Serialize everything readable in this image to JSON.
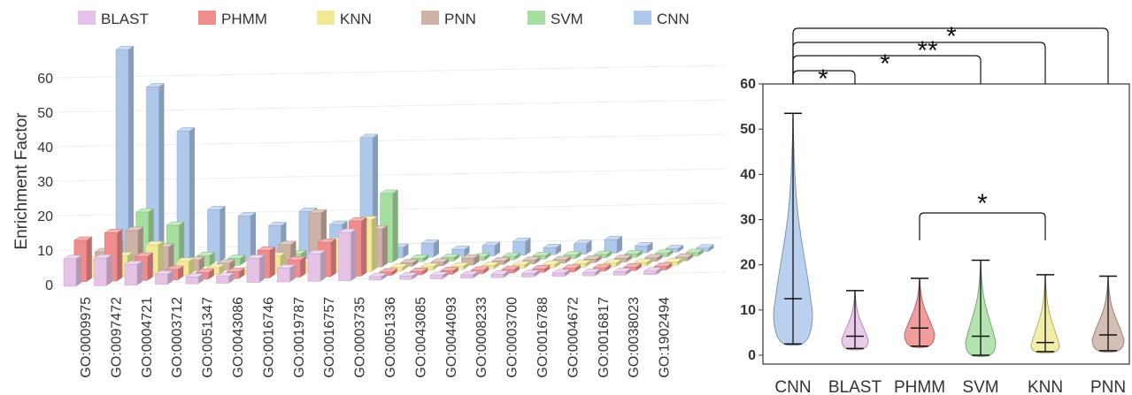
{
  "chart_data": [
    {
      "type": "bar",
      "ylabel": "Enrichment Factor",
      "ylim": [
        0,
        60
      ],
      "yticks": [
        "0",
        "10",
        "20",
        "30",
        "40",
        "50",
        "60"
      ],
      "categories": [
        "GO:0009975",
        "GO:0097472",
        "GO:0004721",
        "GO:0003712",
        "GO:0051347",
        "GO:0043086",
        "GO:0016746",
        "GO:0019787",
        "GO:0016757",
        "GO:0003735",
        "GO:0051336",
        "GO:0043085",
        "GO:0044093",
        "GO:0008233",
        "GO:0003700",
        "GO:0016788",
        "GO:0004672",
        "GO:0016817",
        "GO:0038023",
        "GO:1902494"
      ],
      "legend_position": "top",
      "series": [
        {
          "name": "BLAST",
          "color": "#e6c3e6",
          "values": [
            8,
            8,
            6,
            3,
            2,
            2,
            7,
            4,
            8,
            14,
            1,
            1,
            1,
            1,
            1,
            1,
            1,
            1,
            1,
            1
          ]
        },
        {
          "name": "PHMM",
          "color": "#f08c8c",
          "values": [
            12,
            14,
            7,
            3,
            2,
            2,
            8,
            5,
            10,
            16,
            1,
            1,
            1,
            1,
            1,
            1,
            1,
            1,
            1,
            1
          ]
        },
        {
          "name": "KNN",
          "color": "#f0ea98",
          "values": [
            5,
            6,
            9,
            4,
            2,
            1,
            5,
            3,
            9,
            15,
            1,
            1,
            1,
            1,
            1,
            1,
            1,
            1,
            1,
            1
          ]
        },
        {
          "name": "PNN",
          "color": "#cdb2a6",
          "values": [
            6,
            12,
            7,
            3,
            2,
            3,
            7,
            16,
            8,
            11,
            1,
            1,
            2,
            1,
            1,
            1,
            1,
            1,
            1,
            1
          ]
        },
        {
          "name": "SVM",
          "color": "#a6dea0",
          "values": [
            7,
            16,
            12,
            3,
            2,
            2,
            3,
            6,
            5,
            20,
            1,
            1,
            1,
            1,
            1,
            1,
            1,
            1,
            1,
            1
          ]
        },
        {
          "name": "CNN",
          "color": "#aec8ec",
          "values": [
            62,
            51,
            38,
            15,
            13,
            10,
            14,
            10,
            35,
            3,
            4,
            2,
            3,
            4,
            2,
            3,
            4,
            2,
            1,
            1
          ]
        }
      ]
    },
    {
      "type": "violin",
      "ylim": [
        0,
        60
      ],
      "yticks": [
        "0",
        "10",
        "20",
        "30",
        "40",
        "50",
        "60"
      ],
      "categories": [
        "CNN",
        "BLAST",
        "PHMM",
        "SVM",
        "KNN",
        "PNN"
      ],
      "series": [
        {
          "name": "CNN",
          "color": "#aec8ec",
          "min": 2.5,
          "median": 12.5,
          "max": 53.5
        },
        {
          "name": "BLAST",
          "color": "#e6c3e6",
          "min": 1.5,
          "median": 4.2,
          "max": 14.3
        },
        {
          "name": "PHMM",
          "color": "#f08c8c",
          "min": 2,
          "median": 6,
          "max": 17
        },
        {
          "name": "SVM",
          "color": "#a6dea0",
          "min": 0,
          "median": 4.2,
          "max": 21
        },
        {
          "name": "KNN",
          "color": "#f0ea98",
          "min": 0.8,
          "median": 2.8,
          "max": 17.8
        },
        {
          "name": "PNN",
          "color": "#cdb2a6",
          "min": 1,
          "median": 4.5,
          "max": 17.5
        }
      ],
      "significance": [
        {
          "from": "CNN",
          "to": "BLAST",
          "label": "*"
        },
        {
          "from": "CNN",
          "to": "SVM",
          "label": "*"
        },
        {
          "from": "CNN",
          "to": "KNN",
          "label": "**"
        },
        {
          "from": "CNN",
          "to": "PNN",
          "label": "*"
        },
        {
          "from": "PHMM",
          "to": "KNN",
          "label": "*"
        }
      ]
    }
  ]
}
